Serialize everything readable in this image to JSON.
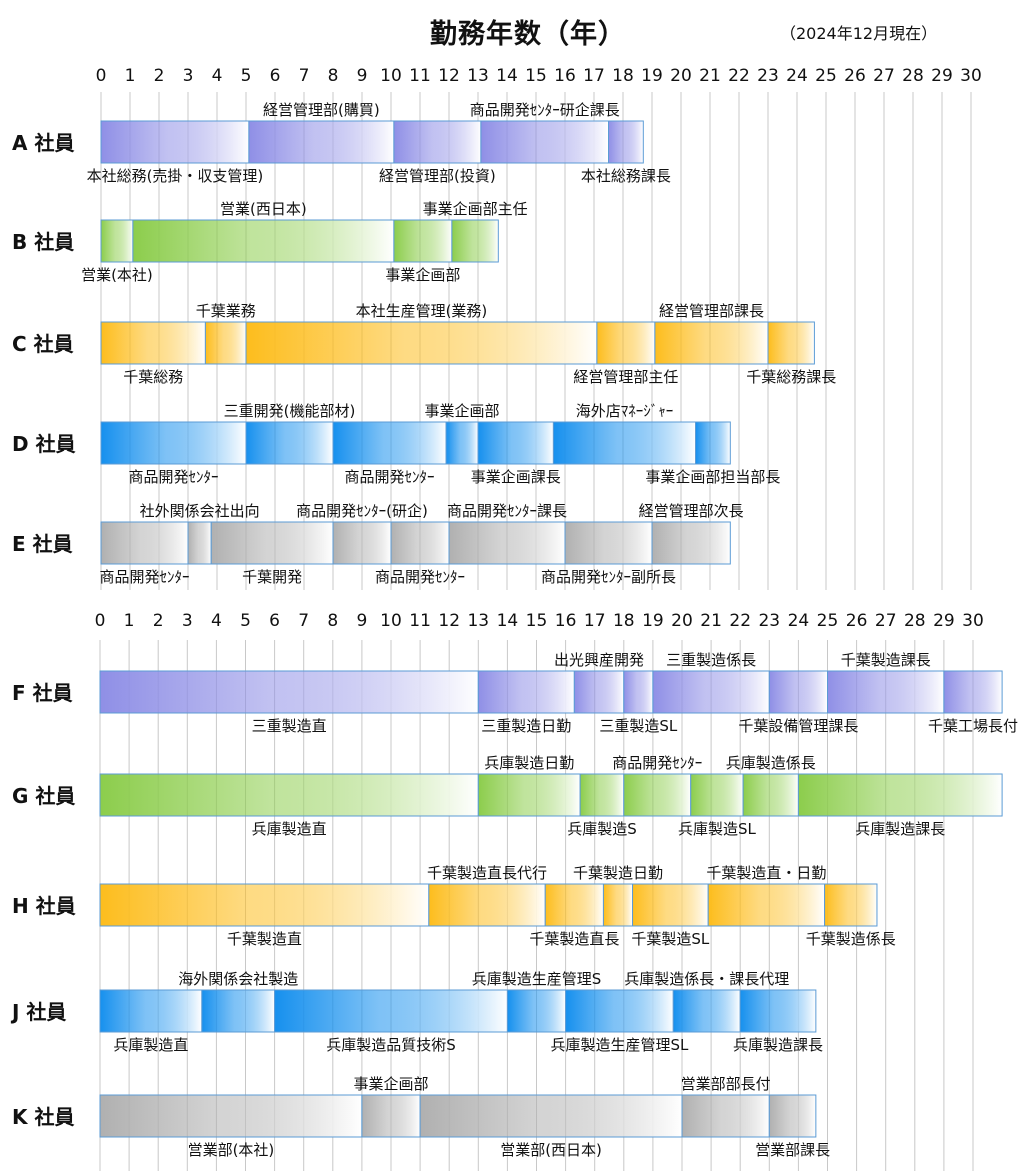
{
  "title": "勤務年数（年）",
  "as_of": "（2024年12月現在）",
  "chart_data": {
    "type": "bar",
    "unit": "年",
    "xlim": [
      0,
      31
    ],
    "ticks": [
      "0",
      "1",
      "2",
      "3",
      "4",
      "5",
      "6",
      "7",
      "8",
      "9",
      "10",
      "11",
      "12",
      "13",
      "14",
      "15",
      "16",
      "17",
      "18",
      "19",
      "20",
      "21",
      "22",
      "23",
      "24",
      "25",
      "26",
      "27",
      "28",
      "29",
      "30"
    ],
    "colors": {
      "purple": "#8f8fe6",
      "green": "#8ccd4c",
      "orange": "#fdbd1d",
      "blue": "#1690ee",
      "gray": "#b0b0b0"
    },
    "groups": [
      {
        "employees": [
          {
            "name": "A 社員",
            "color": "purple",
            "segments": [
              {
                "label": "本社総務(売掛・収支管理)",
                "start": 0,
                "end": 5.1,
                "pos": "below"
              },
              {
                "label": "経営管理部(購買)",
                "start": 5.1,
                "end": 10.1,
                "pos": "above"
              },
              {
                "label": "経営管理部(投資)",
                "start": 10.1,
                "end": 13.1,
                "pos": "below"
              },
              {
                "label": "商品開発ｾﾝﾀｰ研企課長",
                "start": 13.1,
                "end": 17.5,
                "pos": "above"
              },
              {
                "label": "本社総務課長",
                "start": 17.5,
                "end": 18.7,
                "pos": "below"
              }
            ]
          },
          {
            "name": "B 社員",
            "color": "green",
            "segments": [
              {
                "label": "営業(本社)",
                "start": 0,
                "end": 1.1,
                "pos": "below"
              },
              {
                "label": "営業(西日本)",
                "start": 1.1,
                "end": 10.1,
                "pos": "above"
              },
              {
                "label": "事業企画部",
                "start": 10.1,
                "end": 12.1,
                "pos": "below"
              },
              {
                "label": "事業企画部主任",
                "start": 12.1,
                "end": 13.7,
                "pos": "above"
              }
            ]
          },
          {
            "name": "C 社員",
            "color": "orange",
            "segments": [
              {
                "label": "千葉総務",
                "start": 0,
                "end": 3.6,
                "pos": "below"
              },
              {
                "label": "千葉業務",
                "start": 3.6,
                "end": 5.0,
                "pos": "above"
              },
              {
                "label": "本社生産管理(業務)",
                "start": 5.0,
                "end": 17.1,
                "pos": "above"
              },
              {
                "label": "経営管理部主任",
                "start": 17.1,
                "end": 19.1,
                "pos": "below"
              },
              {
                "label": "経営管理部課長",
                "start": 19.1,
                "end": 23.0,
                "pos": "above"
              },
              {
                "label": "千葉総務課長",
                "start": 23.0,
                "end": 24.6,
                "pos": "below"
              }
            ]
          },
          {
            "name": "D 社員",
            "color": "blue",
            "segments": [
              {
                "label": "商品開発ｾﾝﾀｰ",
                "start": 0,
                "end": 5.0,
                "pos": "below"
              },
              {
                "label": "三重開発(機能部材)",
                "start": 5.0,
                "end": 8.0,
                "pos": "above"
              },
              {
                "label": "商品開発ｾﾝﾀｰ",
                "start": 8.0,
                "end": 11.9,
                "pos": "below"
              },
              {
                "label": "事業企画部",
                "start": 11.9,
                "end": 13.0,
                "pos": "above"
              },
              {
                "label": "事業企画課長",
                "start": 13.0,
                "end": 15.6,
                "pos": "below"
              },
              {
                "label": "海外店ﾏﾈｰｼﾞｬｰ",
                "start": 15.6,
                "end": 20.5,
                "pos": "above"
              },
              {
                "label": "事業企画部担当部長",
                "start": 20.5,
                "end": 21.7,
                "pos": "below"
              }
            ]
          },
          {
            "name": "E 社員",
            "color": "gray",
            "segments": [
              {
                "label": "商品開発ｾﾝﾀｰ",
                "start": 0,
                "end": 3.0,
                "pos": "below"
              },
              {
                "label": "社外関係会社出向",
                "start": 3.0,
                "end": 3.8,
                "pos": "above"
              },
              {
                "label": "千葉開発",
                "start": 3.8,
                "end": 8.0,
                "pos": "below"
              },
              {
                "label": "商品開発ｾﾝﾀｰ(研企)",
                "start": 8.0,
                "end": 10.0,
                "pos": "above"
              },
              {
                "label": "商品開発ｾﾝﾀｰ",
                "start": 10.0,
                "end": 12.0,
                "pos": "below"
              },
              {
                "label": "商品開発ｾﾝﾀｰ課長",
                "start": 12.0,
                "end": 16.0,
                "pos": "above"
              },
              {
                "label": "商品開発ｾﾝﾀｰ副所長",
                "start": 16.0,
                "end": 19.0,
                "pos": "below"
              },
              {
                "label": "経営管理部次長",
                "start": 19.0,
                "end": 21.7,
                "pos": "above"
              }
            ]
          }
        ]
      },
      {
        "employees": [
          {
            "name": "F 社員",
            "color": "purple",
            "segments": [
              {
                "label": "三重製造直",
                "start": 0,
                "end": 13.0,
                "pos": "below"
              },
              {
                "label": "三重製造日勤",
                "start": 13.0,
                "end": 16.3,
                "pos": "below"
              },
              {
                "label": "出光興産開発",
                "start": 16.3,
                "end": 18.0,
                "pos": "above"
              },
              {
                "label": "三重製造SL",
                "start": 18.0,
                "end": 19.0,
                "pos": "below"
              },
              {
                "label": "三重製造係長",
                "start": 19.0,
                "end": 23.0,
                "pos": "above"
              },
              {
                "label": "千葉設備管理課長",
                "start": 23.0,
                "end": 25.0,
                "pos": "below"
              },
              {
                "label": "千葉製造課長",
                "start": 25.0,
                "end": 29.0,
                "pos": "above"
              },
              {
                "label": "千葉工場長付",
                "start": 29.0,
                "end": 31.0,
                "pos": "below"
              }
            ]
          },
          {
            "name": "G 社員",
            "color": "green",
            "segments": [
              {
                "label": "兵庫製造直",
                "start": 0,
                "end": 13.0,
                "pos": "below"
              },
              {
                "label": "兵庫製造日勤",
                "start": 13.0,
                "end": 16.5,
                "pos": "above"
              },
              {
                "label": "兵庫製造S",
                "start": 16.5,
                "end": 18.0,
                "pos": "below"
              },
              {
                "label": "商品開発ｾﾝﾀｰ",
                "start": 18.0,
                "end": 20.3,
                "pos": "above"
              },
              {
                "label": "兵庫製造SL",
                "start": 20.3,
                "end": 22.1,
                "pos": "below"
              },
              {
                "label": "兵庫製造係長",
                "start": 22.1,
                "end": 24.0,
                "pos": "above"
              },
              {
                "label": "兵庫製造課長",
                "start": 24.0,
                "end": 31.0,
                "pos": "below"
              }
            ]
          },
          {
            "name": "H 社員",
            "color": "orange",
            "segments": [
              {
                "label": "千葉製造直",
                "start": 0,
                "end": 11.3,
                "pos": "below"
              },
              {
                "label": "千葉製造直長代行",
                "start": 11.3,
                "end": 15.3,
                "pos": "above"
              },
              {
                "label": "千葉製造直長",
                "start": 15.3,
                "end": 17.3,
                "pos": "below"
              },
              {
                "label": "千葉製造日勤",
                "start": 17.3,
                "end": 18.3,
                "pos": "above"
              },
              {
                "label": "千葉製造SL",
                "start": 18.3,
                "end": 20.9,
                "pos": "below"
              },
              {
                "label": "千葉製造直・日勤",
                "start": 20.9,
                "end": 24.9,
                "pos": "above"
              },
              {
                "label": "千葉製造係長",
                "start": 24.9,
                "end": 26.7,
                "pos": "below"
              }
            ]
          },
          {
            "name": "J 社員",
            "color": "blue",
            "segments": [
              {
                "label": "兵庫製造直",
                "start": 0,
                "end": 3.5,
                "pos": "below"
              },
              {
                "label": "海外関係会社製造",
                "start": 3.5,
                "end": 6.0,
                "pos": "above"
              },
              {
                "label": "兵庫製造品質技術S",
                "start": 6.0,
                "end": 14.0,
                "pos": "below"
              },
              {
                "label": "兵庫製造生産管理S",
                "start": 14.0,
                "end": 16.0,
                "pos": "above"
              },
              {
                "label": "兵庫製造生産管理SL",
                "start": 16.0,
                "end": 19.7,
                "pos": "below"
              },
              {
                "label": "兵庫製造係長・課長代理",
                "start": 19.7,
                "end": 22.0,
                "pos": "above"
              },
              {
                "label": "兵庫製造課長",
                "start": 22.0,
                "end": 24.6,
                "pos": "below"
              }
            ]
          },
          {
            "name": "K 社員",
            "color": "gray",
            "segments": [
              {
                "label": "営業部(本社)",
                "start": 0,
                "end": 9.0,
                "pos": "below"
              },
              {
                "label": "事業企画部",
                "start": 9.0,
                "end": 11.0,
                "pos": "above"
              },
              {
                "label": "営業部(西日本)",
                "start": 11.0,
                "end": 20.0,
                "pos": "below"
              },
              {
                "label": "営業部部長付",
                "start": 20.0,
                "end": 23.0,
                "pos": "above"
              },
              {
                "label": "営業部課長",
                "start": 23.0,
                "end": 24.6,
                "pos": "below"
              }
            ]
          }
        ]
      }
    ]
  }
}
